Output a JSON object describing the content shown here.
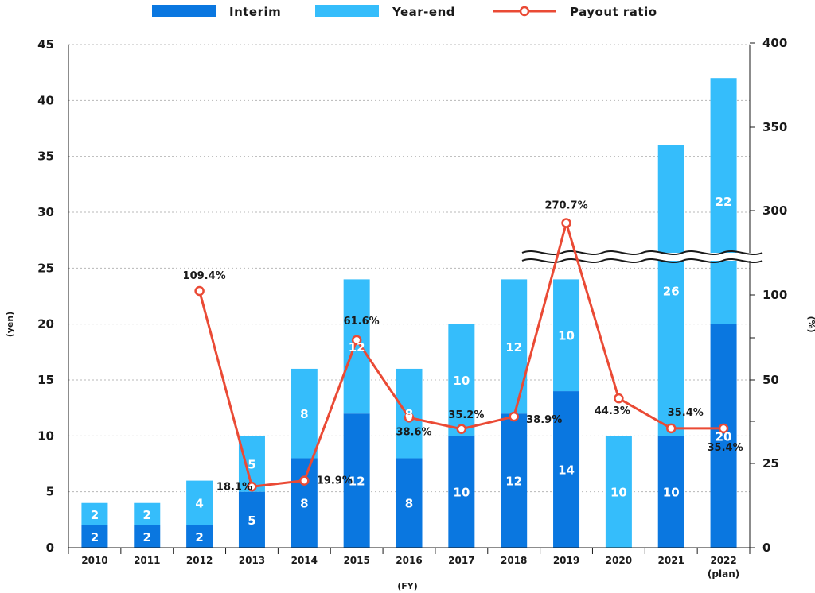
{
  "chart_data": {
    "type": "bar",
    "categories": [
      "2010",
      "2011",
      "2012",
      "2013",
      "2014",
      "2015",
      "2016",
      "2017",
      "2018",
      "2019",
      "2020",
      "2021",
      "2022"
    ],
    "category_sublabels": {
      "2022": "(plan)"
    },
    "series": [
      {
        "name": "Interim",
        "type": "bar",
        "stack": "dividend",
        "axis": "left",
        "color": "#0a77e0",
        "values": [
          2,
          2,
          2,
          5,
          8,
          12,
          8,
          10,
          12,
          14,
          0,
          10,
          20
        ],
        "labels": [
          "2",
          "2",
          "2",
          "5",
          "8",
          "12",
          "8",
          "10",
          "12",
          "14",
          "",
          "10",
          "20"
        ]
      },
      {
        "name": "Year-end",
        "type": "bar",
        "stack": "dividend",
        "axis": "left",
        "color": "#35bdfb",
        "values": [
          2,
          2,
          4,
          5,
          8,
          12,
          8,
          10,
          12,
          10,
          10,
          26,
          22
        ],
        "labels": [
          "2",
          "2",
          "4",
          "5",
          "8",
          "12",
          "8",
          "10",
          "12",
          "10",
          "10",
          "26",
          "22"
        ]
      },
      {
        "name": "Payout ratio",
        "type": "line",
        "axis": "right",
        "color": "#ea4a35",
        "values": [
          null,
          null,
          109.4,
          18.1,
          19.9,
          61.6,
          38.6,
          35.2,
          38.9,
          270.7,
          44.3,
          35.4,
          35.4
        ],
        "labels": [
          "",
          "",
          "109.4%",
          "18.1%",
          "19.9%",
          "61.6%",
          "38.6%",
          "35.2%",
          "38.9%",
          "270.7%",
          "44.3%",
          "35.4%",
          "35.4%"
        ]
      }
    ],
    "xlabel": "(FY)",
    "ylabel": "(yen)",
    "ylabel_right": "(%)",
    "ylim": [
      0,
      45
    ],
    "yticks": [
      "0",
      "5",
      "10",
      "15",
      "20",
      "25",
      "30",
      "35",
      "40",
      "45"
    ],
    "y2ticks": [
      "0",
      "25",
      "50",
      "100",
      "300",
      "350",
      "400"
    ],
    "y2_broken_axis": true,
    "grid": true,
    "legend": "top-center"
  }
}
